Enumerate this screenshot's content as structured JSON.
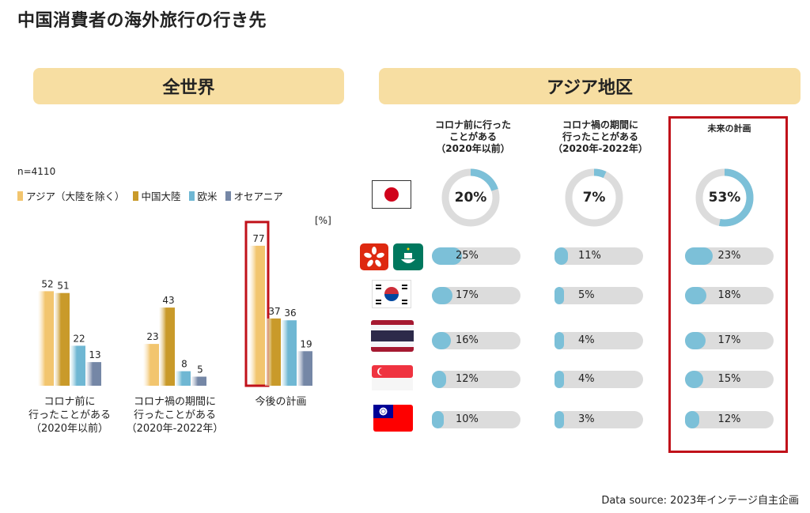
{
  "title": "中国消費者の海外旅行の行き先",
  "left_panel": {
    "banner": "全世界",
    "n_label": "n=4110",
    "unit": "[%]"
  },
  "right_panel": {
    "banner": "アジア地区",
    "col1_header": [
      "コロナ前に行った",
      "ことがある",
      "（2020年以前）"
    ],
    "col2_header": [
      "コロナ禍の期間に",
      "行ったことがある",
      "（2020年-2022年）"
    ],
    "col3_header": "未来の計画"
  },
  "source": "Data source: 2023年インテージ自主企画",
  "colors": {
    "asia": "#f2c56e",
    "china": "#c99a2a",
    "western": "#6fb7d3",
    "oceania": "#7587a6",
    "donut_fill": "#7cc0d8",
    "track": "#dcdcdc",
    "highlight": "#c0111a"
  },
  "chart_data": [
    {
      "type": "bar",
      "categories": [
        [
          "コロナ前に",
          "行ったことがある",
          "（2020年以前）"
        ],
        [
          "コロナ禍の期間に",
          "行ったことがある",
          "（2020年-2022年）"
        ],
        [
          "今後の計画"
        ]
      ],
      "series": [
        {
          "name": "アジア（大陸を除く）",
          "values": [
            52,
            23,
            77
          ]
        },
        {
          "name": "中国大陸",
          "values": [
            51,
            43,
            37
          ]
        },
        {
          "name": "欧米",
          "values": [
            22,
            8,
            36
          ]
        },
        {
          "name": "オセアニア",
          "values": [
            13,
            5,
            19
          ]
        }
      ],
      "highlight": {
        "category_index": 2,
        "series_index": 0
      },
      "ylabel": "[%]",
      "legend_position": "top-left"
    },
    {
      "type": "donut",
      "columns": [
        "コロナ前に行ったことがある（2020年以前）",
        "コロナ禍の期間に行ったことがある（2020年-2022年）",
        "未来の計画"
      ],
      "destination": "Japan",
      "values": [
        20,
        7,
        53
      ],
      "labels": [
        "20%",
        "7%",
        "53%"
      ]
    },
    {
      "type": "bar",
      "orientation": "horizontal",
      "rows": [
        "Hong Kong / Macau",
        "South Korea",
        "Thailand",
        "Singapore",
        "Taiwan"
      ],
      "columns": [
        "コロナ前に行ったことがある（2020年以前）",
        "コロナ禍の期間に行ったことがある（2020年-2022年）",
        "未来の計画"
      ],
      "values": [
        [
          25,
          11,
          23
        ],
        [
          17,
          5,
          18
        ],
        [
          16,
          4,
          17
        ],
        [
          12,
          4,
          15
        ],
        [
          10,
          3,
          12
        ]
      ],
      "labels": [
        [
          "25%",
          "11%",
          "23%"
        ],
        [
          "17%",
          "5%",
          "18%"
        ],
        [
          "16%",
          "4%",
          "17%"
        ],
        [
          "12%",
          "4%",
          "15%"
        ],
        [
          "10%",
          "3%",
          "12%"
        ]
      ]
    }
  ]
}
